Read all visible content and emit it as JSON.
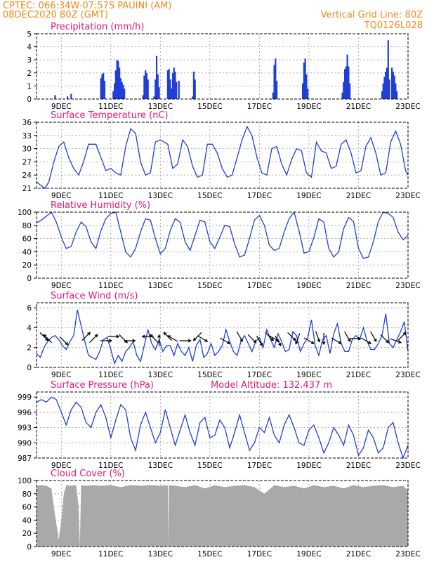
{
  "header": {
    "line1_left": "CPTEC:   066:34W-07:57S   PAUINI (AM)",
    "line2_left": "08DEC2020 80Z (GMT)",
    "line2_right": "Vertical Grid Line: 80Z",
    "line3_right": "TQ0126L028"
  },
  "colors": {
    "series": "#1f3fd6",
    "cloud": "#a9a9a9",
    "title": "#e0187a",
    "header": "#f08a1c"
  },
  "chart_data": [
    {
      "type": "bar",
      "title": "Precipitation (mm/h)",
      "xlabels": [
        "9DEC",
        "11DEC",
        "13DEC",
        "15DEC",
        "17DEC",
        "19DEC",
        "21DEC",
        "23DEC"
      ],
      "x_range_days": [
        8.0,
        23.0
      ],
      "ylim": [
        0,
        5
      ],
      "yticks": [
        0,
        1,
        2,
        3,
        4,
        5
      ],
      "bars": [
        [
          8.75,
          0.3
        ],
        [
          9.25,
          0.2
        ],
        [
          9.4,
          0.4
        ],
        [
          10.6,
          1.6
        ],
        [
          10.65,
          1.9
        ],
        [
          10.7,
          2.0
        ],
        [
          10.75,
          1.4
        ],
        [
          11.1,
          0.6
        ],
        [
          11.15,
          1.2
        ],
        [
          11.2,
          2.2
        ],
        [
          11.25,
          3.0
        ],
        [
          11.3,
          2.9
        ],
        [
          11.35,
          2.4
        ],
        [
          11.4,
          1.6
        ],
        [
          11.45,
          1.3
        ],
        [
          11.5,
          1.1
        ],
        [
          11.55,
          0.8
        ],
        [
          12.3,
          0.3
        ],
        [
          12.35,
          1.8
        ],
        [
          12.4,
          2.2
        ],
        [
          12.45,
          2.0
        ],
        [
          12.5,
          1.5
        ],
        [
          12.75,
          0.2
        ],
        [
          12.8,
          1.5
        ],
        [
          12.85,
          3.3
        ],
        [
          12.9,
          1.9
        ],
        [
          12.95,
          0.9
        ],
        [
          13.3,
          2.2
        ],
        [
          13.35,
          2.3
        ],
        [
          13.4,
          1.5
        ],
        [
          13.45,
          0.8
        ],
        [
          13.5,
          2.0
        ],
        [
          13.55,
          2.4
        ],
        [
          13.6,
          2.1
        ],
        [
          13.65,
          1.3
        ],
        [
          13.75,
          1.4
        ],
        [
          14.3,
          0.2
        ],
        [
          14.35,
          2.1
        ],
        [
          14.4,
          1.5
        ],
        [
          17.55,
          0.5
        ],
        [
          17.6,
          2.6
        ],
        [
          17.65,
          3.1
        ],
        [
          17.7,
          1.4
        ],
        [
          18.75,
          1.2
        ],
        [
          18.8,
          2.8
        ],
        [
          18.85,
          3.1
        ],
        [
          18.9,
          1.9
        ],
        [
          18.95,
          0.8
        ],
        [
          20.35,
          0.5
        ],
        [
          20.4,
          1.3
        ],
        [
          20.45,
          2.3
        ],
        [
          20.5,
          2.5
        ],
        [
          20.55,
          3.4
        ],
        [
          20.6,
          2.5
        ],
        [
          20.65,
          1.2
        ],
        [
          21.95,
          0.6
        ],
        [
          22.0,
          1.2
        ],
        [
          22.05,
          1.7
        ],
        [
          22.1,
          2.1
        ],
        [
          22.15,
          2.4
        ],
        [
          22.2,
          4.5
        ],
        [
          22.25,
          1.5
        ],
        [
          22.35,
          2.4
        ],
        [
          22.4,
          2.1
        ],
        [
          22.45,
          1.8
        ],
        [
          22.5,
          1.2
        ],
        [
          22.55,
          0.6
        ]
      ]
    },
    {
      "type": "line",
      "title": "Surface Temperature (nC)",
      "xlabels": [
        "9DEC",
        "11DEC",
        "13DEC",
        "15DEC",
        "17DEC",
        "19DEC",
        "21DEC",
        "23DEC"
      ],
      "x_range_days": [
        8.0,
        23.0
      ],
      "ylim": [
        21,
        36
      ],
      "yticks": [
        21,
        24,
        27,
        30,
        33,
        36
      ],
      "x": [
        8.0,
        8.2,
        8.35,
        8.5,
        8.7,
        8.9,
        9.1,
        9.3,
        9.5,
        9.7,
        9.9,
        10.1,
        10.4,
        10.6,
        10.8,
        11.0,
        11.2,
        11.4,
        11.6,
        11.8,
        12.0,
        12.2,
        12.4,
        12.6,
        12.8,
        13.0,
        13.3,
        13.5,
        13.7,
        13.9,
        14.1,
        14.3,
        14.5,
        14.7,
        14.9,
        15.1,
        15.3,
        15.5,
        15.7,
        15.9,
        16.1,
        16.3,
        16.5,
        16.7,
        16.9,
        17.1,
        17.3,
        17.5,
        17.7,
        17.9,
        18.1,
        18.3,
        18.5,
        18.7,
        18.9,
        19.1,
        19.3,
        19.5,
        19.7,
        19.9,
        20.1,
        20.3,
        20.5,
        20.7,
        20.9,
        21.1,
        21.3,
        21.5,
        21.7,
        21.9,
        22.1,
        22.3,
        22.5,
        22.7,
        22.9,
        23.0
      ],
      "y": [
        22.5,
        21.5,
        21.0,
        22.5,
        27.0,
        30.5,
        31.5,
        28.0,
        25.5,
        24.0,
        27.0,
        31.0,
        31.0,
        28.0,
        25.0,
        25.5,
        24.5,
        24.0,
        30.5,
        34.5,
        33.5,
        27.0,
        24.0,
        24.5,
        31.5,
        32.0,
        31.0,
        25.5,
        26.5,
        32.0,
        30.5,
        26.0,
        23.5,
        24.0,
        31.0,
        31.0,
        29.0,
        25.5,
        23.5,
        24.0,
        28.0,
        32.0,
        35.0,
        33.0,
        28.0,
        24.5,
        24.0,
        30.0,
        30.5,
        26.5,
        24.0,
        27.5,
        30.0,
        29.5,
        24.5,
        23.5,
        31.5,
        29.5,
        29.0,
        25.5,
        26.0,
        31.0,
        32.0,
        29.0,
        24.5,
        25.0,
        30.5,
        32.5,
        29.0,
        24.0,
        24.5,
        31.5,
        34.0,
        31.0,
        25.0,
        24.0
      ]
    },
    {
      "type": "line",
      "title": "Relative Humidity (%)",
      "xlabels": [
        "9DEC",
        "11DEC",
        "13DEC",
        "15DEC",
        "17DEC",
        "19DEC",
        "21DEC",
        "23DEC"
      ],
      "x_range_days": [
        8.0,
        23.0
      ],
      "ylim": [
        0,
        100
      ],
      "yticks": [
        0,
        20,
        40,
        60,
        80,
        100
      ],
      "x": [
        8.0,
        8.2,
        8.4,
        8.6,
        8.8,
        9.0,
        9.2,
        9.4,
        9.6,
        9.8,
        10.0,
        10.2,
        10.4,
        10.6,
        10.8,
        11.0,
        11.2,
        11.4,
        11.6,
        11.8,
        12.0,
        12.2,
        12.4,
        12.6,
        12.8,
        13.0,
        13.2,
        13.4,
        13.6,
        13.8,
        14.0,
        14.2,
        14.4,
        14.6,
        14.8,
        15.0,
        15.2,
        15.4,
        15.6,
        15.8,
        16.0,
        16.2,
        16.4,
        16.6,
        16.8,
        17.0,
        17.2,
        17.4,
        17.6,
        17.8,
        18.0,
        18.2,
        18.4,
        18.6,
        18.8,
        19.0,
        19.2,
        19.4,
        19.6,
        19.8,
        20.0,
        20.2,
        20.4,
        20.6,
        20.8,
        21.0,
        21.2,
        21.4,
        21.6,
        21.8,
        22.0,
        22.2,
        22.4,
        22.6,
        22.8,
        23.0
      ],
      "y": [
        84,
        88,
        94,
        100,
        85,
        62,
        45,
        48,
        70,
        85,
        78,
        55,
        45,
        72,
        90,
        98,
        100,
        70,
        40,
        32,
        45,
        70,
        90,
        88,
        60,
        37,
        45,
        72,
        90,
        85,
        55,
        42,
        65,
        88,
        85,
        55,
        45,
        62,
        80,
        78,
        52,
        32,
        35,
        60,
        88,
        95,
        80,
        50,
        42,
        45,
        70,
        90,
        100,
        72,
        38,
        40,
        62,
        90,
        85,
        45,
        32,
        40,
        75,
        92,
        86,
        45,
        30,
        32,
        55,
        86,
        100,
        98,
        92,
        70,
        58,
        65
      ]
    },
    {
      "type": "line",
      "title": "Surface Wind (m/s)",
      "xlabels": [
        "9DEC",
        "11DEC",
        "13DEC",
        "15DEC",
        "17DEC",
        "19DEC",
        "21DEC",
        "23DEC"
      ],
      "x_range_days": [
        8.0,
        23.0
      ],
      "ylim": [
        0,
        6.5
      ],
      "yticks": [
        0,
        2,
        4,
        6
      ],
      "x": [
        8.0,
        8.15,
        8.3,
        8.45,
        8.6,
        8.75,
        8.9,
        9.05,
        9.2,
        9.35,
        9.5,
        9.65,
        9.8,
        9.95,
        10.1,
        10.25,
        10.4,
        10.55,
        10.7,
        10.85,
        11.0,
        11.15,
        11.3,
        11.45,
        11.6,
        11.75,
        11.9,
        12.05,
        12.2,
        12.35,
        12.5,
        12.65,
        12.8,
        12.95,
        13.1,
        13.25,
        13.4,
        13.55,
        13.7,
        13.85,
        14.0,
        14.15,
        14.3,
        14.45,
        14.6,
        14.75,
        14.9,
        15.05,
        15.2,
        15.35,
        15.5,
        15.65,
        15.8,
        15.95,
        16.1,
        16.25,
        16.4,
        16.55,
        16.7,
        16.85,
        17.0,
        17.15,
        17.3,
        17.45,
        17.6,
        17.75,
        17.9,
        18.05,
        18.2,
        18.35,
        18.5,
        18.65,
        18.8,
        18.95,
        19.1,
        19.25,
        19.4,
        19.55,
        19.7,
        19.85,
        20.0,
        20.15,
        20.3,
        20.45,
        20.6,
        20.75,
        20.9,
        21.05,
        21.2,
        21.35,
        21.5,
        21.65,
        21.8,
        21.95,
        22.1,
        22.25,
        22.4,
        22.55,
        22.7,
        22.85,
        23.0
      ],
      "y": [
        1.4,
        1.0,
        2.0,
        2.6,
        3.0,
        3.2,
        2.8,
        2.2,
        1.8,
        2.6,
        3.2,
        5.8,
        4.2,
        2.6,
        1.2,
        1.0,
        0.8,
        1.6,
        2.8,
        3.0,
        1.8,
        0.4,
        1.2,
        0.6,
        1.6,
        2.0,
        2.6,
        1.2,
        0.6,
        2.2,
        3.8,
        2.4,
        1.8,
        2.8,
        1.6,
        2.2,
        2.2,
        1.2,
        2.4,
        1.6,
        1.2,
        2.0,
        0.6,
        2.2,
        2.8,
        1.0,
        1.4,
        2.4,
        1.2,
        1.6,
        2.2,
        3.8,
        2.6,
        1.6,
        1.2,
        2.6,
        3.2,
        2.4,
        1.6,
        2.6,
        3.0,
        2.0,
        3.8,
        2.8,
        2.0,
        3.4,
        2.6,
        1.6,
        1.8,
        3.6,
        3.2,
        1.6,
        2.4,
        3.0,
        4.8,
        2.2,
        1.2,
        2.8,
        3.2,
        1.4,
        3.4,
        4.4,
        2.4,
        1.6,
        1.6,
        2.8,
        3.2,
        2.8,
        4.0,
        2.6,
        1.8,
        1.8,
        2.4,
        3.2,
        5.4,
        2.4,
        2.0,
        2.8,
        3.6,
        4.6,
        1.6
      ]
    },
    {
      "type": "line",
      "title": "Surface Pressure (hPa)",
      "subtitle": "Model Altitude: 132.437 m",
      "xlabels": [
        "9DEC",
        "11DEC",
        "13DEC",
        "15DEC",
        "17DEC",
        "19DEC",
        "21DEC",
        "23DEC"
      ],
      "x_range_days": [
        8.0,
        23.0
      ],
      "ylim": [
        987,
        1000
      ],
      "yticks": [
        987,
        990,
        993,
        996,
        999
      ],
      "x": [
        8.0,
        8.2,
        8.4,
        8.6,
        8.8,
        9.0,
        9.2,
        9.4,
        9.6,
        9.8,
        10.0,
        10.2,
        10.4,
        10.6,
        10.8,
        11.0,
        11.2,
        11.4,
        11.6,
        11.8,
        12.0,
        12.2,
        12.4,
        12.6,
        12.8,
        13.0,
        13.2,
        13.4,
        13.6,
        13.8,
        14.0,
        14.2,
        14.4,
        14.6,
        14.8,
        15.0,
        15.2,
        15.4,
        15.6,
        15.8,
        16.0,
        16.2,
        16.4,
        16.6,
        16.8,
        17.0,
        17.2,
        17.4,
        17.6,
        17.8,
        18.0,
        18.2,
        18.4,
        18.6,
        18.8,
        19.0,
        19.2,
        19.4,
        19.6,
        19.8,
        20.0,
        20.2,
        20.4,
        20.6,
        20.8,
        21.0,
        21.2,
        21.4,
        21.6,
        21.8,
        22.0,
        22.2,
        22.4,
        22.6,
        22.8,
        23.0
      ],
      "y": [
        998.0,
        998.5,
        998.0,
        999.0,
        998.5,
        996.0,
        993.5,
        996.5,
        998.0,
        997.0,
        994.0,
        993.0,
        996.0,
        997.5,
        995.0,
        991.0,
        994.5,
        997.5,
        996.5,
        991.0,
        988.5,
        993.5,
        996.0,
        993.0,
        990.0,
        992.0,
        996.5,
        993.0,
        989.5,
        992.5,
        995.5,
        992.0,
        989.5,
        994.0,
        995.0,
        991.0,
        991.5,
        994.5,
        993.0,
        989.0,
        992.0,
        995.5,
        992.0,
        988.5,
        990.0,
        993.0,
        992.0,
        995.0,
        991.5,
        990.0,
        993.5,
        995.5,
        993.0,
        990.0,
        989.5,
        992.5,
        993.5,
        991.0,
        988.0,
        990.0,
        993.0,
        991.5,
        989.5,
        993.5,
        991.5,
        987.5,
        989.0,
        992.5,
        991.0,
        988.0,
        989.0,
        993.0,
        994.0,
        990.0,
        987.0,
        989.5
      ]
    },
    {
      "type": "area",
      "title": "Cloud Cover (%)",
      "xlabels": [
        "9DEC",
        "11DEC",
        "13DEC",
        "15DEC",
        "17DEC",
        "19DEC",
        "21DEC",
        "23DEC"
      ],
      "x_range_days": [
        8.0,
        23.0
      ],
      "ylim": [
        0,
        100
      ],
      "yticks": [
        0,
        20,
        40,
        60,
        80,
        100
      ],
      "x": [
        8.0,
        8.2,
        8.4,
        8.6,
        8.7,
        8.8,
        8.9,
        9.0,
        9.1,
        9.2,
        9.4,
        9.6,
        9.7,
        9.75,
        9.8,
        10.0,
        10.3,
        10.6,
        11.0,
        11.4,
        11.8,
        12.2,
        12.6,
        13.0,
        13.3,
        13.32,
        13.34,
        13.6,
        14.0,
        14.4,
        14.8,
        15.2,
        15.6,
        16.0,
        16.4,
        16.8,
        17.2,
        17.6,
        18.0,
        18.4,
        18.8,
        19.2,
        19.6,
        20.0,
        20.4,
        20.8,
        21.2,
        21.6,
        22.0,
        22.4,
        22.8,
        23.0
      ],
      "y": [
        92,
        93,
        92,
        88,
        60,
        35,
        10,
        40,
        80,
        93,
        92,
        93,
        60,
        0,
        93,
        92,
        93,
        92,
        93,
        90,
        93,
        92,
        93,
        92,
        93,
        0,
        93,
        92,
        90,
        93,
        88,
        93,
        90,
        92,
        93,
        90,
        80,
        93,
        90,
        92,
        88,
        93,
        90,
        92,
        88,
        93,
        90,
        92,
        93,
        90,
        92,
        85
      ]
    }
  ],
  "wind_arrows": [
    {
      "x": 8.3,
      "dir_deg": 135
    },
    {
      "x": 8.45,
      "dir_deg": 315
    },
    {
      "x": 9.1,
      "dir_deg": 135
    },
    {
      "x": 10.0,
      "dir_deg": 45
    },
    {
      "x": 10.3,
      "dir_deg": 45
    },
    {
      "x": 10.8,
      "dir_deg": 90
    },
    {
      "x": 11.1,
      "dir_deg": 90
    },
    {
      "x": 11.5,
      "dir_deg": 135
    },
    {
      "x": 11.75,
      "dir_deg": 90
    },
    {
      "x": 12.5,
      "dir_deg": 270
    },
    {
      "x": 12.75,
      "dir_deg": 315
    },
    {
      "x": 12.95,
      "dir_deg": 0
    },
    {
      "x": 13.3,
      "dir_deg": 315
    },
    {
      "x": 13.5,
      "dir_deg": 300
    },
    {
      "x": 14.0,
      "dir_deg": 90
    },
    {
      "x": 14.5,
      "dir_deg": 225
    },
    {
      "x": 14.7,
      "dir_deg": 120
    },
    {
      "x": 15.6,
      "dir_deg": 120
    },
    {
      "x": 16.2,
      "dir_deg": 150
    },
    {
      "x": 16.7,
      "dir_deg": 135
    },
    {
      "x": 17.0,
      "dir_deg": 150
    },
    {
      "x": 17.4,
      "dir_deg": 135
    },
    {
      "x": 17.6,
      "dir_deg": 120
    },
    {
      "x": 17.75,
      "dir_deg": 150
    },
    {
      "x": 18.3,
      "dir_deg": 135
    },
    {
      "x": 18.55,
      "dir_deg": 200
    },
    {
      "x": 19.0,
      "dir_deg": 120
    },
    {
      "x": 19.35,
      "dir_deg": 160
    },
    {
      "x": 19.6,
      "dir_deg": 180
    },
    {
      "x": 20.1,
      "dir_deg": 120
    },
    {
      "x": 20.55,
      "dir_deg": 150
    },
    {
      "x": 20.85,
      "dir_deg": 90
    },
    {
      "x": 21.3,
      "dir_deg": 120
    },
    {
      "x": 21.6,
      "dir_deg": 150
    },
    {
      "x": 22.05,
      "dir_deg": 135
    },
    {
      "x": 22.5,
      "dir_deg": 110
    },
    {
      "x": 22.75,
      "dir_deg": 45
    }
  ]
}
